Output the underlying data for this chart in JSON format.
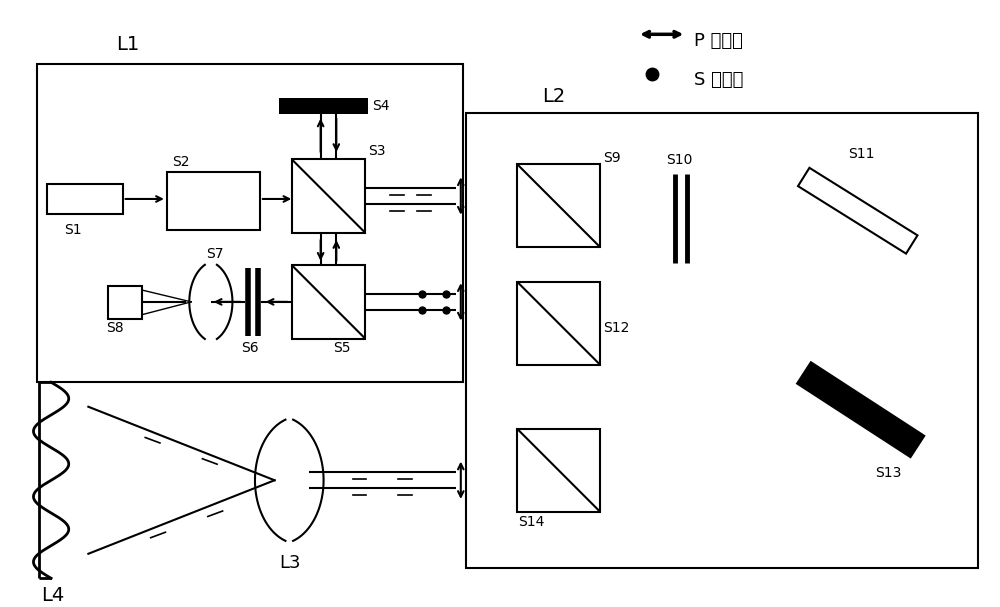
{
  "bg_color": "#ffffff",
  "line_color": "#000000",
  "legend_P_label": "P 偏振光",
  "legend_S_label": "S 偏振光",
  "L1_label": "L1",
  "L2_label": "L2",
  "L3_label": "L3",
  "L4_label": "L4"
}
